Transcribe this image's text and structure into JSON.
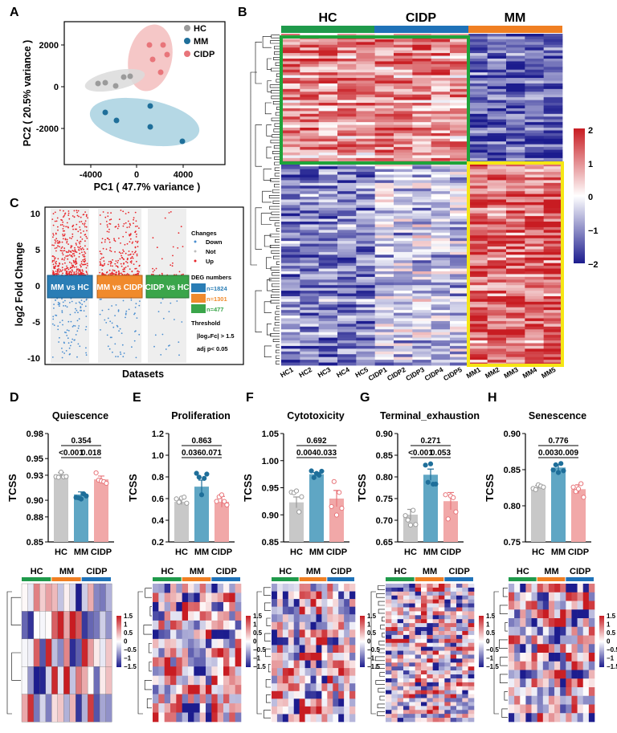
{
  "colors": {
    "hc": "#9b9b9b",
    "mm": "#1f6f9a",
    "cidp": "#e8757a",
    "hc_bar": "#c8c8c8",
    "mm_bar": "#5fa6c4",
    "cidp_bar": "#f1a8a8",
    "group_hc": "#1f9a4b",
    "group_cidp": "#1f72b8",
    "group_mm": "#f07f22",
    "heat_red": "#d7262b",
    "heat_blue": "#20209a",
    "box_green": "#1fa33a",
    "box_yellow": "#f5e614"
  },
  "panel_labels": [
    "A",
    "B",
    "C",
    "D",
    "E",
    "F",
    "G",
    "H"
  ],
  "panelA": {
    "xlabel": "PC1 ( 47.7% variance )",
    "ylabel": "PC2 ( 20.5% variance )",
    "xticks": [
      "-4000",
      "0",
      "4000"
    ],
    "yticks": [
      "2000",
      "0",
      "-2000"
    ],
    "legend": [
      "HC",
      "MM",
      "CIDP"
    ]
  },
  "panelB": {
    "groups": [
      "HC",
      "CIDP",
      "MM"
    ],
    "samples": [
      "HC1",
      "HC2",
      "HC3",
      "HC4",
      "HC5",
      "CIDP1",
      "CIDP2",
      "CIDP3",
      "CIDP4",
      "CIDP5",
      "MM1",
      "MM2",
      "MM3",
      "MM4",
      "MM5"
    ],
    "scale_ticks": [
      "2",
      "1",
      "0",
      "−1",
      "−2"
    ]
  },
  "panelC": {
    "ylabel": "log2 Fold Change",
    "xlabel": "Datasets",
    "yticks": [
      "10",
      "5",
      "0",
      "-5",
      "-10"
    ],
    "comparisons": [
      "MM vs HC",
      "MM vs CIDP",
      "CIDP vs HC"
    ],
    "changes_title": "Changes",
    "changes": [
      "Down",
      "Not",
      "Up"
    ],
    "deg_title": "DEG numbers",
    "deg": [
      "n=1824",
      "n=1301",
      "n=477"
    ],
    "threshold_title": "Threshold",
    "threshold_fc": "|log₂Fc| > 1.5",
    "threshold_p": "adj p< 0.05"
  },
  "bars": [
    {
      "title": "Quiescence",
      "ylabel": "TCSS",
      "yticks": [
        "0.98",
        "0.95",
        "0.93",
        "0.90",
        "0.88",
        "0.85"
      ],
      "ylim": [
        0.85,
        0.98
      ],
      "means": [
        0.931,
        0.907,
        0.925
      ],
      "errs": [
        0.002,
        0.003,
        0.004
      ],
      "pvals": [
        "<0.001",
        "0.018",
        "0.354"
      ],
      "groups": [
        "HC",
        "MM",
        "CIDP"
      ]
    },
    {
      "title": "Proliferation",
      "ylabel": "TCSS",
      "yticks": [
        "1.2",
        "1.0",
        "0.8",
        "0.6",
        "0.4",
        "0.2"
      ],
      "ylim": [
        0.2,
        1.2
      ],
      "means": [
        0.57,
        0.71,
        0.57
      ],
      "errs": [
        0.025,
        0.06,
        0.05
      ],
      "pvals": [
        "0.036",
        "0.071",
        "0.863"
      ],
      "groups": [
        "HC",
        "MM",
        "CIDP"
      ]
    },
    {
      "title": "Cytotoxicity",
      "ylabel": "TCSS",
      "yticks": [
        "1.05",
        "1.00",
        "0.95",
        "0.90",
        "0.85"
      ],
      "ylim": [
        0.85,
        1.05
      ],
      "means": [
        0.923,
        0.975,
        0.93
      ],
      "errs": [
        0.01,
        0.003,
        0.015
      ],
      "pvals": [
        "0.004",
        "0.033",
        "0.692"
      ],
      "groups": [
        "HC",
        "MM",
        "CIDP"
      ]
    },
    {
      "title": "Terminal_exhaustion",
      "ylabel": "TCSS",
      "yticks": [
        "0.90",
        "0.85",
        "0.80",
        "0.75",
        "0.70",
        "0.65"
      ],
      "ylim": [
        0.65,
        0.9
      ],
      "means": [
        0.713,
        0.805,
        0.744
      ],
      "errs": [
        0.012,
        0.013,
        0.02
      ],
      "pvals": [
        "<0.001",
        "0.053",
        "0.271"
      ],
      "groups": [
        "HC",
        "MM",
        "CIDP"
      ]
    },
    {
      "title": "Senescence",
      "ylabel": "TCSS",
      "yticks": [
        "0.90",
        "0.85",
        "0.80",
        "0.75"
      ],
      "ylim": [
        0.75,
        0.9
      ],
      "means": [
        0.826,
        0.853,
        0.823
      ],
      "errs": [
        0.002,
        0.004,
        0.006
      ],
      "pvals": [
        "0.003",
        "0.009",
        "0.776"
      ],
      "groups": [
        "HC",
        "MM",
        "CIDP"
      ]
    }
  ],
  "small_heat": {
    "groups": [
      "HC",
      "MM",
      "CIDP"
    ],
    "scale_ticks": [
      "1.5",
      "1",
      "0.5",
      "0",
      "−0.5",
      "−1",
      "−1.5"
    ]
  }
}
